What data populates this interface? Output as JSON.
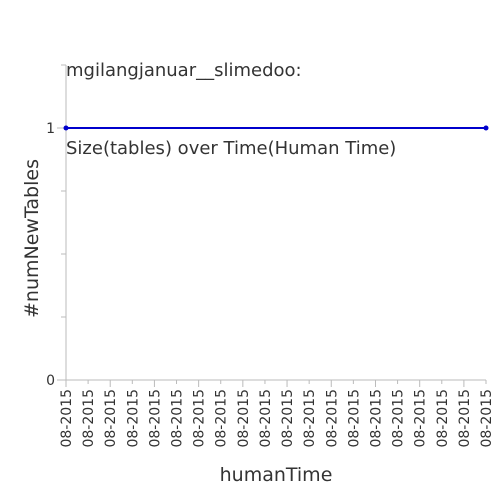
{
  "chart_data": {
    "type": "line",
    "title_lines": [
      "mgilangjanuar__slimedoo:",
      "Size(tables) over Time(Human Time)"
    ],
    "xlabel": "humanTime",
    "ylabel": "#numNewTables",
    "x_tick_labels": [
      "08-2015",
      "08-2015",
      "08-2015",
      "08-2015",
      "08-2015",
      "08-2015",
      "08-2015",
      "08-2015",
      "08-2015",
      "08-2015",
      "08-2015",
      "08-2015",
      "08-2015",
      "08-2015",
      "08-2015",
      "08-2015",
      "08-2015",
      "08-2015",
      "08-2015",
      "08-2015"
    ],
    "y_tick_labels": [
      "0",
      "1"
    ],
    "ylim": [
      0,
      1.25
    ],
    "y_major_ticks": [
      0,
      1
    ],
    "y_minor_ticks": [
      0.25,
      0.5,
      0.75,
      1.25
    ],
    "series": [
      {
        "values": [
          1,
          1
        ],
        "color": "#0000cc"
      }
    ],
    "grid": false,
    "legend": "none"
  }
}
